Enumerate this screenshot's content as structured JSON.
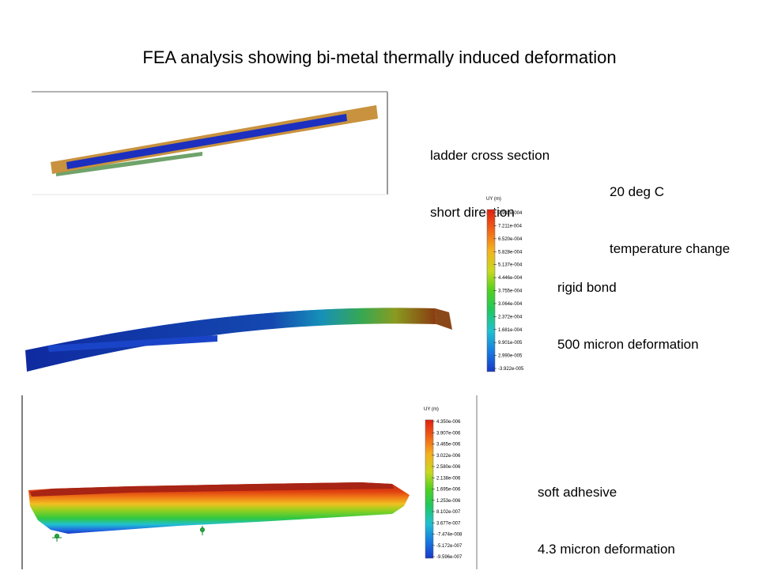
{
  "title": "FEA analysis showing bi-metal thermally induced deformation",
  "notes": {
    "cross_section": {
      "line1": "ladder cross section",
      "line2": "short direction"
    },
    "temperature": {
      "line1": "20 deg C",
      "line2": "temperature change"
    },
    "rigid": {
      "line1": "rigid bond",
      "line2": "500 micron deformation"
    },
    "soft": {
      "line1": "soft adhesive",
      "line2": "4.3 micron deformation"
    }
  },
  "legend_rigid": {
    "title": "UY (m)",
    "ticks": [
      "7.902e-004",
      "7.211e-004",
      "6.520e-004",
      "5.828e-004",
      "5.137e-004",
      "4.446e-004",
      "3.755e-004",
      "3.064e-004",
      "2.372e-004",
      "1.681e-004",
      "9.901e-005",
      "2.990e-005",
      "-3.922e-005"
    ]
  },
  "legend_soft": {
    "title": "UY (m)",
    "ticks": [
      "4.350e-006",
      "3.907e-006",
      "3.465e-006",
      "3.022e-006",
      "2.580e-006",
      "2.138e-006",
      "1.695e-006",
      "1.253e-006",
      "8.102e-007",
      "3.677e-007",
      "-7.474e-008",
      "-5.172e-007",
      "-9.596e-007"
    ]
  },
  "colors": {
    "copper": "#c8923e",
    "blue_layer": "#1c2fbf",
    "green_layer": "#6fa36a",
    "colormap": [
      "#e02010",
      "#f06018",
      "#f4a020",
      "#e8d020",
      "#a8d820",
      "#50d020",
      "#20c040",
      "#20c8a0",
      "#20b8e0",
      "#1878e0",
      "#1838c8"
    ]
  }
}
